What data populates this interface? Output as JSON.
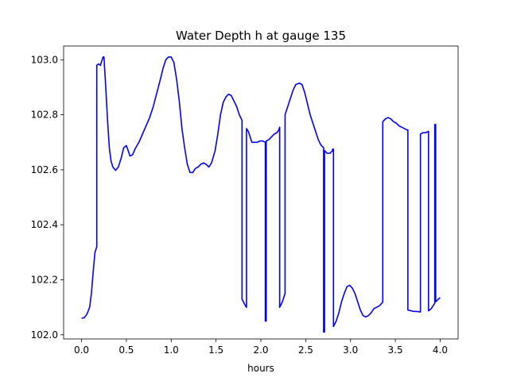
{
  "chart_data": {
    "type": "line",
    "title": "Water Depth h at gauge 135",
    "xlabel": "hours",
    "ylabel": "",
    "xlim": [
      -0.2,
      4.2
    ],
    "ylim": [
      101.985,
      103.05
    ],
    "x_ticks": [
      0.0,
      0.5,
      1.0,
      1.5,
      2.0,
      2.5,
      3.0,
      3.5,
      4.0
    ],
    "x_tick_labels": [
      "0.0",
      "0.5",
      "1.0",
      "1.5",
      "2.0",
      "2.5",
      "3.0",
      "3.5",
      "4.0"
    ],
    "y_ticks": [
      102.0,
      102.2,
      102.4,
      102.6,
      102.8,
      103.0
    ],
    "y_tick_labels": [
      "102.0",
      "102.2",
      "102.4",
      "102.6",
      "102.8",
      "103.0"
    ],
    "grid": false,
    "legend": "none",
    "series": [
      {
        "color": "#0000ff",
        "points": [
          [
            0.0,
            102.06
          ],
          [
            0.03,
            102.062
          ],
          [
            0.06,
            102.075
          ],
          [
            0.09,
            102.1
          ],
          [
            0.11,
            102.15
          ],
          [
            0.13,
            102.23
          ],
          [
            0.15,
            102.3
          ],
          [
            0.17,
            102.32
          ],
          [
            0.17,
            102.98
          ],
          [
            0.19,
            102.985
          ],
          [
            0.21,
            102.98
          ],
          [
            0.22,
            102.99
          ],
          [
            0.24,
            103.01
          ],
          [
            0.25,
            103.01
          ],
          [
            0.27,
            102.9
          ],
          [
            0.29,
            102.78
          ],
          [
            0.31,
            102.68
          ],
          [
            0.33,
            102.63
          ],
          [
            0.35,
            102.61
          ],
          [
            0.38,
            102.598
          ],
          [
            0.41,
            102.61
          ],
          [
            0.44,
            102.64
          ],
          [
            0.47,
            102.68
          ],
          [
            0.5,
            102.688
          ],
          [
            0.52,
            102.67
          ],
          [
            0.54,
            102.65
          ],
          [
            0.57,
            102.655
          ],
          [
            0.6,
            102.678
          ],
          [
            0.64,
            102.7
          ],
          [
            0.68,
            102.73
          ],
          [
            0.72,
            102.76
          ],
          [
            0.76,
            102.79
          ],
          [
            0.8,
            102.83
          ],
          [
            0.84,
            102.88
          ],
          [
            0.88,
            102.93
          ],
          [
            0.91,
            102.97
          ],
          [
            0.94,
            103.0
          ],
          [
            0.97,
            103.01
          ],
          [
            1.0,
            103.01
          ],
          [
            1.03,
            102.99
          ],
          [
            1.06,
            102.93
          ],
          [
            1.09,
            102.85
          ],
          [
            1.12,
            102.75
          ],
          [
            1.15,
            102.68
          ],
          [
            1.18,
            102.62
          ],
          [
            1.21,
            102.59
          ],
          [
            1.24,
            102.59
          ],
          [
            1.27,
            102.605
          ],
          [
            1.3,
            102.61
          ],
          [
            1.33,
            102.62
          ],
          [
            1.36,
            102.625
          ],
          [
            1.39,
            102.62
          ],
          [
            1.42,
            102.61
          ],
          [
            1.45,
            102.625
          ],
          [
            1.49,
            102.67
          ],
          [
            1.52,
            102.73
          ],
          [
            1.55,
            102.8
          ],
          [
            1.58,
            102.845
          ],
          [
            1.61,
            102.865
          ],
          [
            1.64,
            102.875
          ],
          [
            1.67,
            102.87
          ],
          [
            1.7,
            102.85
          ],
          [
            1.73,
            102.83
          ],
          [
            1.76,
            102.8
          ],
          [
            1.79,
            102.78
          ],
          [
            1.79,
            102.13
          ],
          [
            1.82,
            102.11
          ],
          [
            1.84,
            102.1
          ],
          [
            1.84,
            102.75
          ],
          [
            1.86,
            102.74
          ],
          [
            1.88,
            102.72
          ],
          [
            1.9,
            102.7
          ],
          [
            1.93,
            102.7
          ],
          [
            1.96,
            102.7
          ],
          [
            1.99,
            102.705
          ],
          [
            2.02,
            102.705
          ],
          [
            2.05,
            102.7
          ],
          [
            2.05,
            102.05
          ],
          [
            2.06,
            102.05
          ],
          [
            2.06,
            102.705
          ],
          [
            2.09,
            102.71
          ],
          [
            2.12,
            102.72
          ],
          [
            2.15,
            102.73
          ],
          [
            2.18,
            102.735
          ],
          [
            2.2,
            102.745
          ],
          [
            2.21,
            102.755
          ],
          [
            2.21,
            102.1
          ],
          [
            2.24,
            102.12
          ],
          [
            2.26,
            102.14
          ],
          [
            2.27,
            102.15
          ],
          [
            2.27,
            102.8
          ],
          [
            2.3,
            102.83
          ],
          [
            2.33,
            102.86
          ],
          [
            2.36,
            102.89
          ],
          [
            2.39,
            102.91
          ],
          [
            2.43,
            102.915
          ],
          [
            2.46,
            102.91
          ],
          [
            2.49,
            102.88
          ],
          [
            2.52,
            102.84
          ],
          [
            2.55,
            102.8
          ],
          [
            2.58,
            102.77
          ],
          [
            2.61,
            102.74
          ],
          [
            2.64,
            102.71
          ],
          [
            2.67,
            102.69
          ],
          [
            2.7,
            102.68
          ],
          [
            2.7,
            102.01
          ],
          [
            2.71,
            102.01
          ],
          [
            2.71,
            102.67
          ],
          [
            2.74,
            102.66
          ],
          [
            2.77,
            102.66
          ],
          [
            2.8,
            102.67
          ],
          [
            2.8,
            102.675
          ],
          [
            2.81,
            102.675
          ],
          [
            2.81,
            102.03
          ],
          [
            2.84,
            102.05
          ],
          [
            2.87,
            102.08
          ],
          [
            2.9,
            102.12
          ],
          [
            2.93,
            102.15
          ],
          [
            2.96,
            102.175
          ],
          [
            2.99,
            102.18
          ],
          [
            3.02,
            102.17
          ],
          [
            3.05,
            102.15
          ],
          [
            3.08,
            102.12
          ],
          [
            3.11,
            102.09
          ],
          [
            3.14,
            102.07
          ],
          [
            3.17,
            102.065
          ],
          [
            3.2,
            102.07
          ],
          [
            3.23,
            102.08
          ],
          [
            3.26,
            102.095
          ],
          [
            3.29,
            102.1
          ],
          [
            3.32,
            102.105
          ],
          [
            3.35,
            102.115
          ],
          [
            3.36,
            102.12
          ],
          [
            3.36,
            102.775
          ],
          [
            3.39,
            102.785
          ],
          [
            3.42,
            102.79
          ],
          [
            3.45,
            102.785
          ],
          [
            3.48,
            102.775
          ],
          [
            3.51,
            102.77
          ],
          [
            3.54,
            102.76
          ],
          [
            3.57,
            102.755
          ],
          [
            3.6,
            102.75
          ],
          [
            3.63,
            102.745
          ],
          [
            3.64,
            102.745
          ],
          [
            3.64,
            102.09
          ],
          [
            3.67,
            102.088
          ],
          [
            3.7,
            102.085
          ],
          [
            3.73,
            102.085
          ],
          [
            3.76,
            102.084
          ],
          [
            3.78,
            102.083
          ],
          [
            3.78,
            102.73
          ],
          [
            3.81,
            102.735
          ],
          [
            3.84,
            102.735
          ],
          [
            3.86,
            102.738
          ],
          [
            3.87,
            102.74
          ],
          [
            3.87,
            102.087
          ],
          [
            3.9,
            102.095
          ],
          [
            3.92,
            102.105
          ],
          [
            3.94,
            102.115
          ],
          [
            3.94,
            102.765
          ],
          [
            3.95,
            102.765
          ],
          [
            3.95,
            102.12
          ],
          [
            3.98,
            102.13
          ],
          [
            4.0,
            102.135
          ]
        ]
      }
    ]
  }
}
